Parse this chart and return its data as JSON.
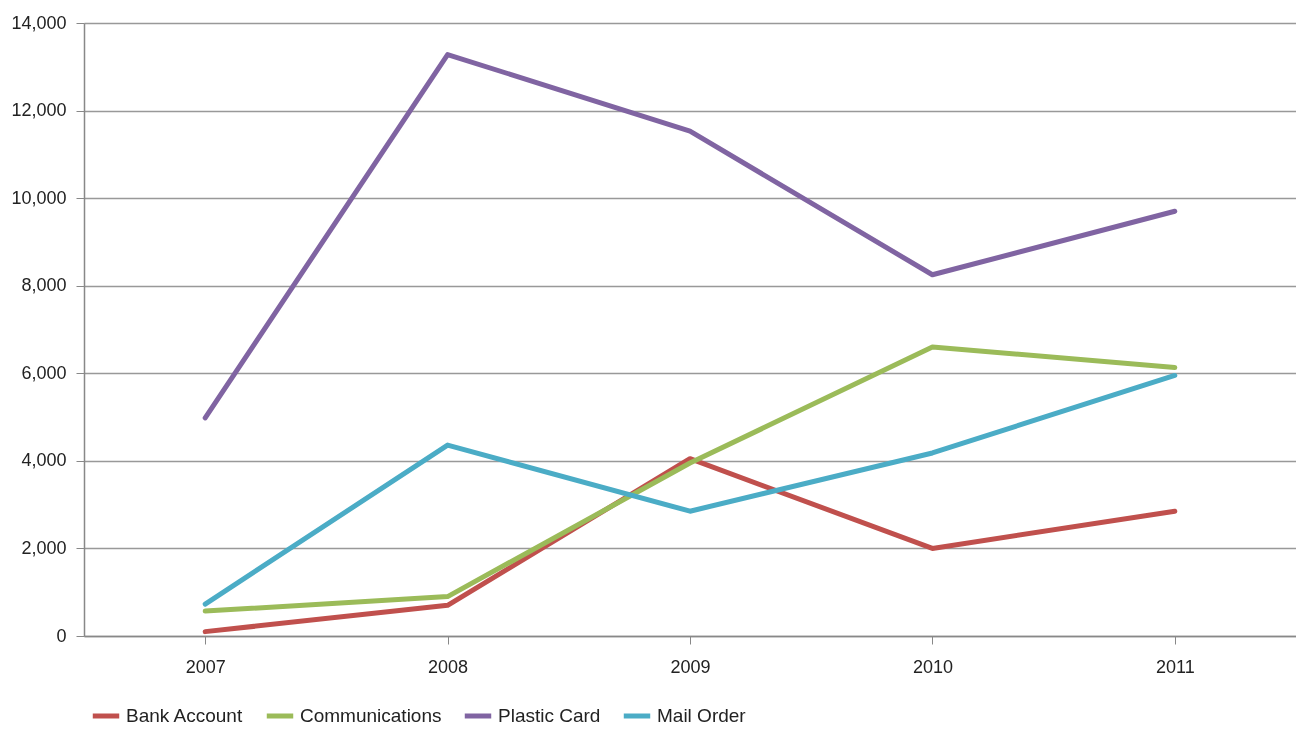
{
  "chart_data": {
    "type": "line",
    "categories": [
      "2007",
      "2008",
      "2009",
      "2010",
      "2011"
    ],
    "series": [
      {
        "name": "Bank Account",
        "color": "#c0504d",
        "values": [
          100,
          700,
          4050,
          2000,
          2850
        ]
      },
      {
        "name": "Communications",
        "color": "#9bbb59",
        "values": [
          570,
          900,
          3950,
          6600,
          6130
        ]
      },
      {
        "name": "Plastic Card",
        "color": "#8064a2",
        "values": [
          4980,
          13280,
          11530,
          8250,
          9700
        ]
      },
      {
        "name": "Mail Order",
        "color": "#4bacc6",
        "values": [
          730,
          4360,
          2850,
          4180,
          5950
        ]
      }
    ],
    "ylim": [
      0,
      14000
    ],
    "yticks": [
      0,
      {
        "value": 2000,
        "label": "2,000"
      },
      {
        "value": 4000,
        "label": "4,000"
      },
      {
        "value": 6000,
        "label": "6,000"
      },
      {
        "value": 8000,
        "label": "8,000"
      },
      {
        "value": 10000,
        "label": "10,000"
      },
      {
        "value": 12000,
        "label": "12,000"
      },
      {
        "value": 14000,
        "label": "14,000"
      }
    ],
    "grid": "y",
    "legend": "bottom",
    "marker": "none",
    "line_style": "solid"
  }
}
